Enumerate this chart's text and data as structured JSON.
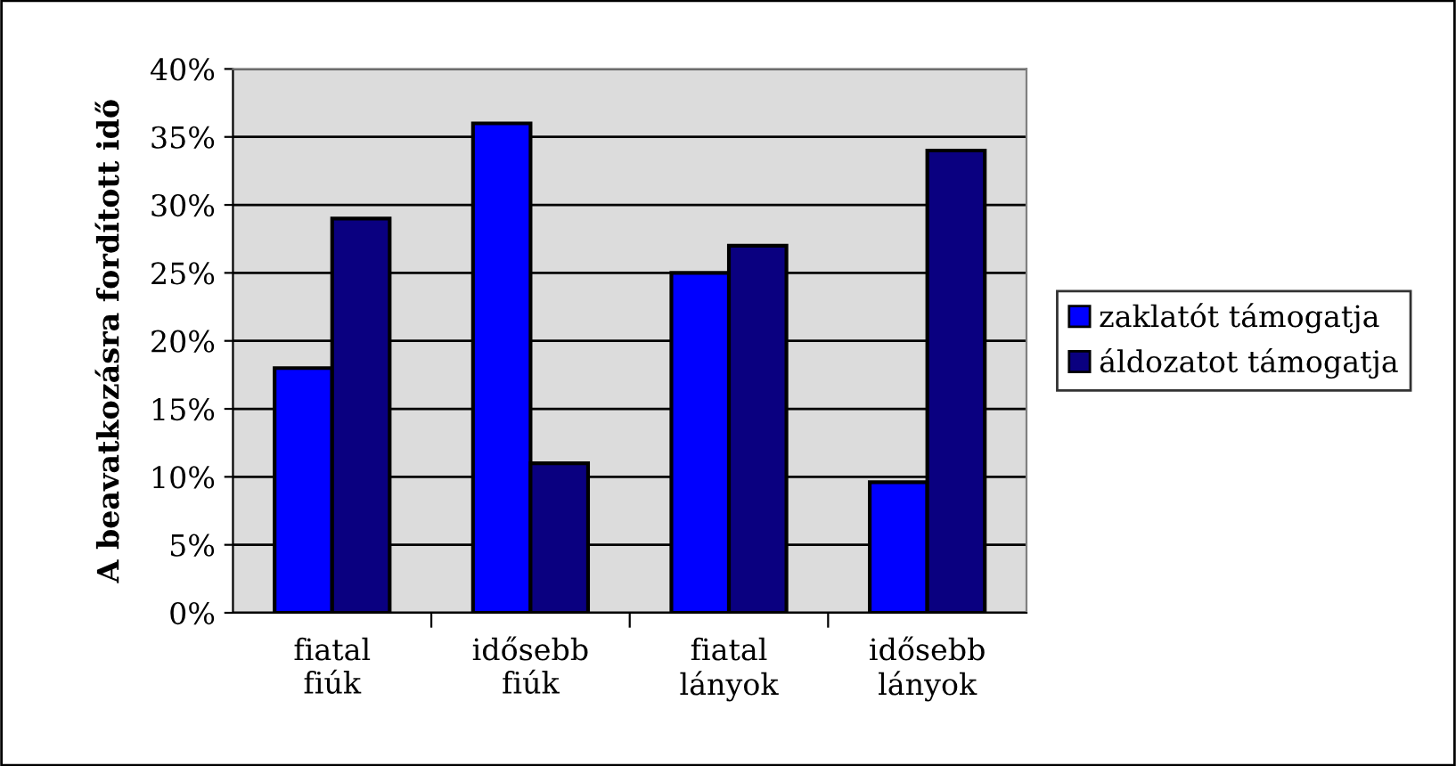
{
  "chart_data": {
    "type": "bar",
    "ylabel": "A beavatkozásra fordított idő",
    "categories": [
      "fiatal\nfiúk",
      "idősebb\nfiúk",
      "fiatal\nlányok",
      "idősebb\nlányok"
    ],
    "series": [
      {
        "name": "zaklatót támogatja",
        "color": "#0000ff",
        "values": [
          18,
          36,
          25,
          9.6
        ]
      },
      {
        "name": "áldozatot támogatja",
        "color": "#0a0080",
        "values": [
          29,
          11,
          27,
          34
        ]
      }
    ],
    "ylim": [
      0,
      40
    ],
    "yticks": [
      {
        "value": 0,
        "label": "0%"
      },
      {
        "value": 5,
        "label": "5%"
      },
      {
        "value": 10,
        "label": "10%"
      },
      {
        "value": 15,
        "label": "15%"
      },
      {
        "value": 20,
        "label": "20%"
      },
      {
        "value": 25,
        "label": "25%"
      },
      {
        "value": 30,
        "label": "30%"
      },
      {
        "value": 35,
        "label": "35%"
      },
      {
        "value": 40,
        "label": "40%"
      }
    ],
    "grid": "y",
    "legend": "right"
  }
}
